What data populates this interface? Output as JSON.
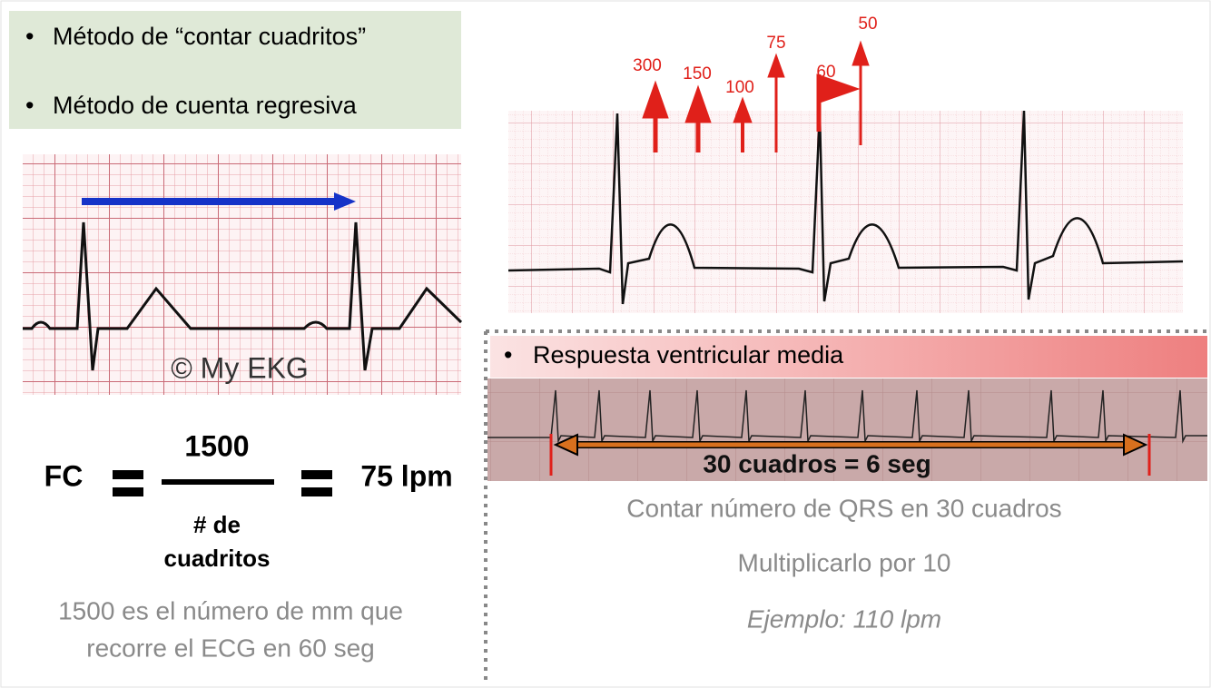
{
  "left": {
    "bullets": [
      "Método de “contar cuadritos”",
      "Método de cuenta regresiva"
    ],
    "ecg_watermark": "© My EKG",
    "formula": {
      "lhs": "FC",
      "numerator": "1500",
      "denominator_line1": "# de",
      "denominator_line2": "cuadritos",
      "result": "75 lpm"
    },
    "note": [
      "1500 es el número de mm que",
      "recorre el ECG en 60 seg"
    ]
  },
  "right": {
    "countdown_labels": [
      "300",
      "150",
      "100",
      "75",
      "60",
      "50"
    ],
    "banner": "Respuesta ventricular media",
    "strip_label": "30 cuadros = 6 seg",
    "lines": [
      "Contar número de QRS en 30 cuadros",
      "Multiplicarlo por 10",
      "Ejemplo: 110 lpm"
    ]
  }
}
